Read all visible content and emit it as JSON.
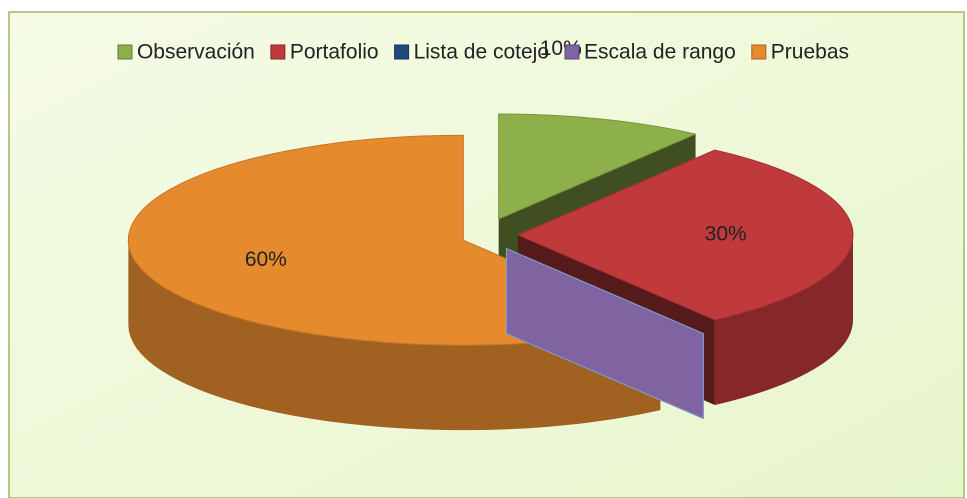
{
  "chart_data": {
    "type": "pie3d",
    "categories": [
      "Observación",
      "Portafolio",
      "Lista de cotejo",
      "Escala de rango",
      "Pruebas"
    ],
    "values": [
      10,
      30,
      0,
      0,
      60
    ],
    "value_labels": [
      "10%",
      "30%",
      null,
      null,
      "60%"
    ],
    "colors": [
      "#8db04a",
      "#c0393b",
      "#1f497d",
      "#8064a2",
      "#e68a2e"
    ],
    "legend": "top"
  }
}
